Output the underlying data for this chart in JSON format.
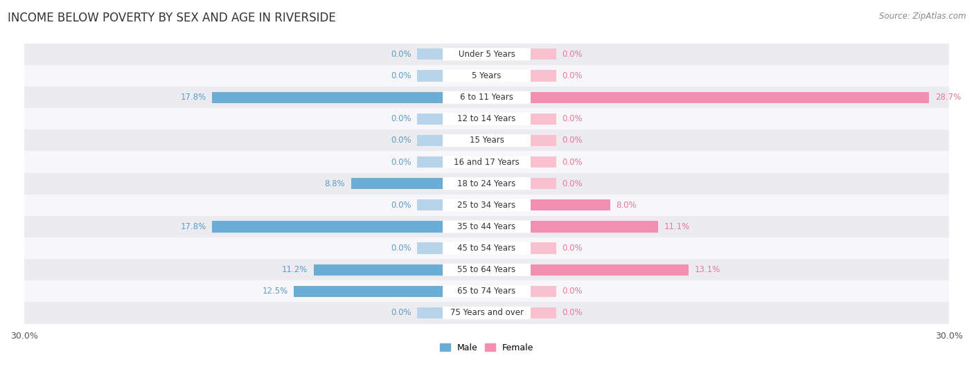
{
  "title": "INCOME BELOW POVERTY BY SEX AND AGE IN RIVERSIDE",
  "source": "Source: ZipAtlas.com",
  "categories": [
    "Under 5 Years",
    "5 Years",
    "6 to 11 Years",
    "12 to 14 Years",
    "15 Years",
    "16 and 17 Years",
    "18 to 24 Years",
    "25 to 34 Years",
    "35 to 44 Years",
    "45 to 54 Years",
    "55 to 64 Years",
    "65 to 74 Years",
    "75 Years and over"
  ],
  "male_values": [
    0.0,
    0.0,
    17.8,
    0.0,
    0.0,
    0.0,
    8.8,
    0.0,
    17.8,
    0.0,
    11.2,
    12.5,
    0.0
  ],
  "female_values": [
    0.0,
    0.0,
    28.7,
    0.0,
    0.0,
    0.0,
    0.0,
    8.0,
    11.1,
    0.0,
    13.1,
    0.0,
    0.0
  ],
  "male_color": "#6aaed6",
  "female_color": "#f48fb1",
  "male_bg_color": "#b8d4ea",
  "female_bg_color": "#f9c0d0",
  "row_bg_dark": "#ebebf0",
  "row_bg_light": "#f7f7fa",
  "label_text_color": "#333333",
  "value_male_color": "#5a9ec8",
  "value_female_color": "#e87898",
  "xlim": 30.0,
  "zero_bar_width": 4.5,
  "legend_male": "Male",
  "legend_female": "Female",
  "title_fontsize": 12,
  "label_fontsize": 8.5,
  "cat_fontsize": 8.5,
  "tick_fontsize": 9,
  "source_fontsize": 8.5
}
